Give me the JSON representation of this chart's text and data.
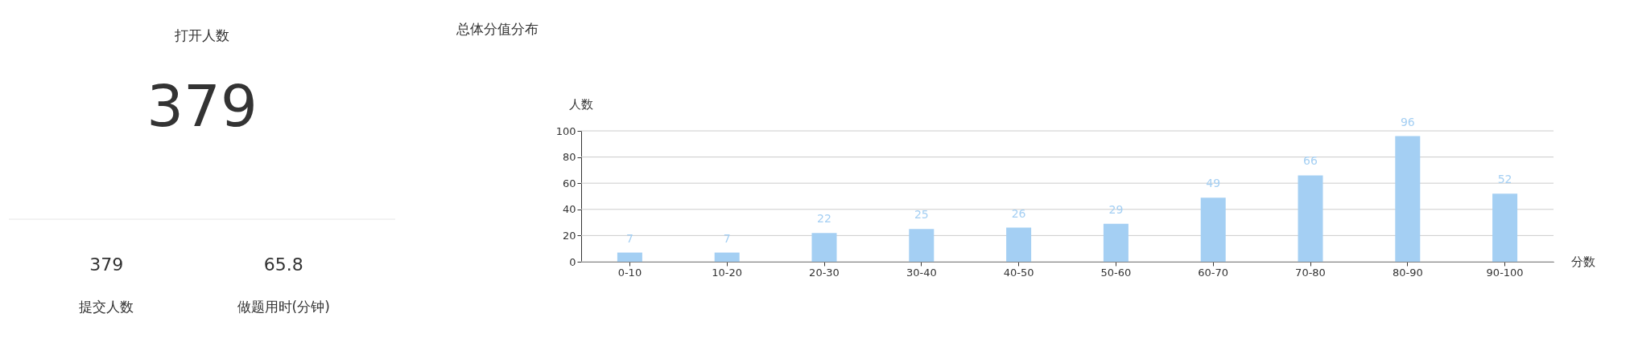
{
  "chart_data": [
    {
      "type": "other",
      "title": "打开人数",
      "annotations": [
        "379",
        "379",
        "65.8",
        "提交人数",
        "做题用时(分钟)"
      ]
    },
    {
      "type": "bar",
      "title": "总体分值分布",
      "xlabel": "分数",
      "ylabel": "人数",
      "categories": [
        "0-10",
        "10-20",
        "20-30",
        "30-40",
        "40-50",
        "50-60",
        "60-70",
        "70-80",
        "80-90",
        "90-100"
      ],
      "values": [
        7,
        7,
        22,
        25,
        26,
        29,
        49,
        66,
        96,
        52
      ],
      "color": "#a4cff3",
      "ylim": [
        0,
        100
      ],
      "yticks": [
        0,
        20,
        40,
        60,
        80,
        100
      ],
      "grid": "y",
      "data_labels": true
    }
  ]
}
